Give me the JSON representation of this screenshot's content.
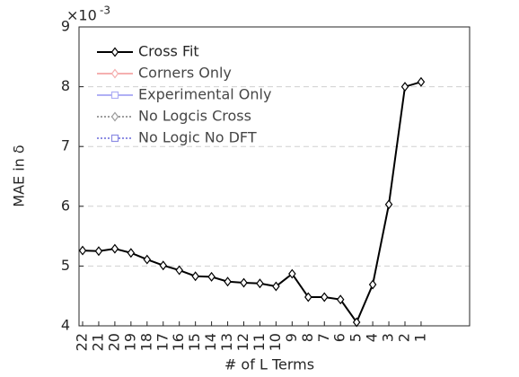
{
  "chart_data": {
    "type": "line",
    "exponent_label": {
      "base": "×10",
      "power": "-3"
    },
    "xlabel": "# of L Terms",
    "ylabel": "MAE in δ",
    "categories": [
      "22",
      "21",
      "20",
      "19",
      "18",
      "17",
      "16",
      "15",
      "14",
      "13",
      "12",
      "11",
      "10",
      "9",
      "8",
      "7",
      "6",
      "5",
      "4",
      "3",
      "2",
      "1"
    ],
    "series": [
      {
        "name": "Cross Fit",
        "color": "#000000",
        "marker": "diamond",
        "dash": "solid",
        "visible": true,
        "values": [
          5.26,
          5.25,
          5.29,
          5.22,
          5.11,
          5.01,
          4.93,
          4.83,
          4.82,
          4.74,
          4.72,
          4.71,
          4.66,
          4.87,
          4.48,
          4.48,
          4.44,
          4.06,
          4.69,
          6.03,
          8.0,
          8.08
        ]
      },
      {
        "name": "Corners Only",
        "color": "#f4a3a3",
        "marker": "diamond",
        "dash": "solid",
        "visible": false,
        "values": [
          null,
          null,
          null,
          null,
          null,
          null,
          null,
          null,
          null,
          null,
          null,
          null,
          null,
          null,
          null,
          null,
          null,
          null,
          null,
          null,
          null,
          null
        ]
      },
      {
        "name": "Experimental Only",
        "color": "#a3a3f4",
        "marker": "square",
        "dash": "solid",
        "visible": false,
        "values": [
          null,
          null,
          null,
          null,
          null,
          null,
          null,
          null,
          null,
          null,
          null,
          null,
          null,
          null,
          null,
          null,
          null,
          null,
          null,
          null,
          null,
          null
        ]
      },
      {
        "name": "No Logcis Cross",
        "color": "#8c8c8c",
        "marker": "diamond",
        "dash": "dotted",
        "visible": false,
        "values": [
          null,
          null,
          null,
          null,
          null,
          null,
          null,
          null,
          null,
          null,
          null,
          null,
          null,
          null,
          null,
          null,
          null,
          null,
          null,
          null,
          null,
          null
        ]
      },
      {
        "name": "No Logic No DFT",
        "color": "#7a7ae0",
        "marker": "square",
        "dash": "dotted",
        "visible": false,
        "values": [
          null,
          null,
          null,
          null,
          null,
          null,
          null,
          null,
          null,
          null,
          null,
          null,
          null,
          null,
          null,
          null,
          null,
          null,
          null,
          null,
          null,
          null
        ]
      }
    ],
    "ylim": [
      4,
      9
    ],
    "yticks": [
      4,
      5,
      6,
      7,
      8,
      9
    ],
    "grid": "y",
    "legend": "upper left"
  }
}
